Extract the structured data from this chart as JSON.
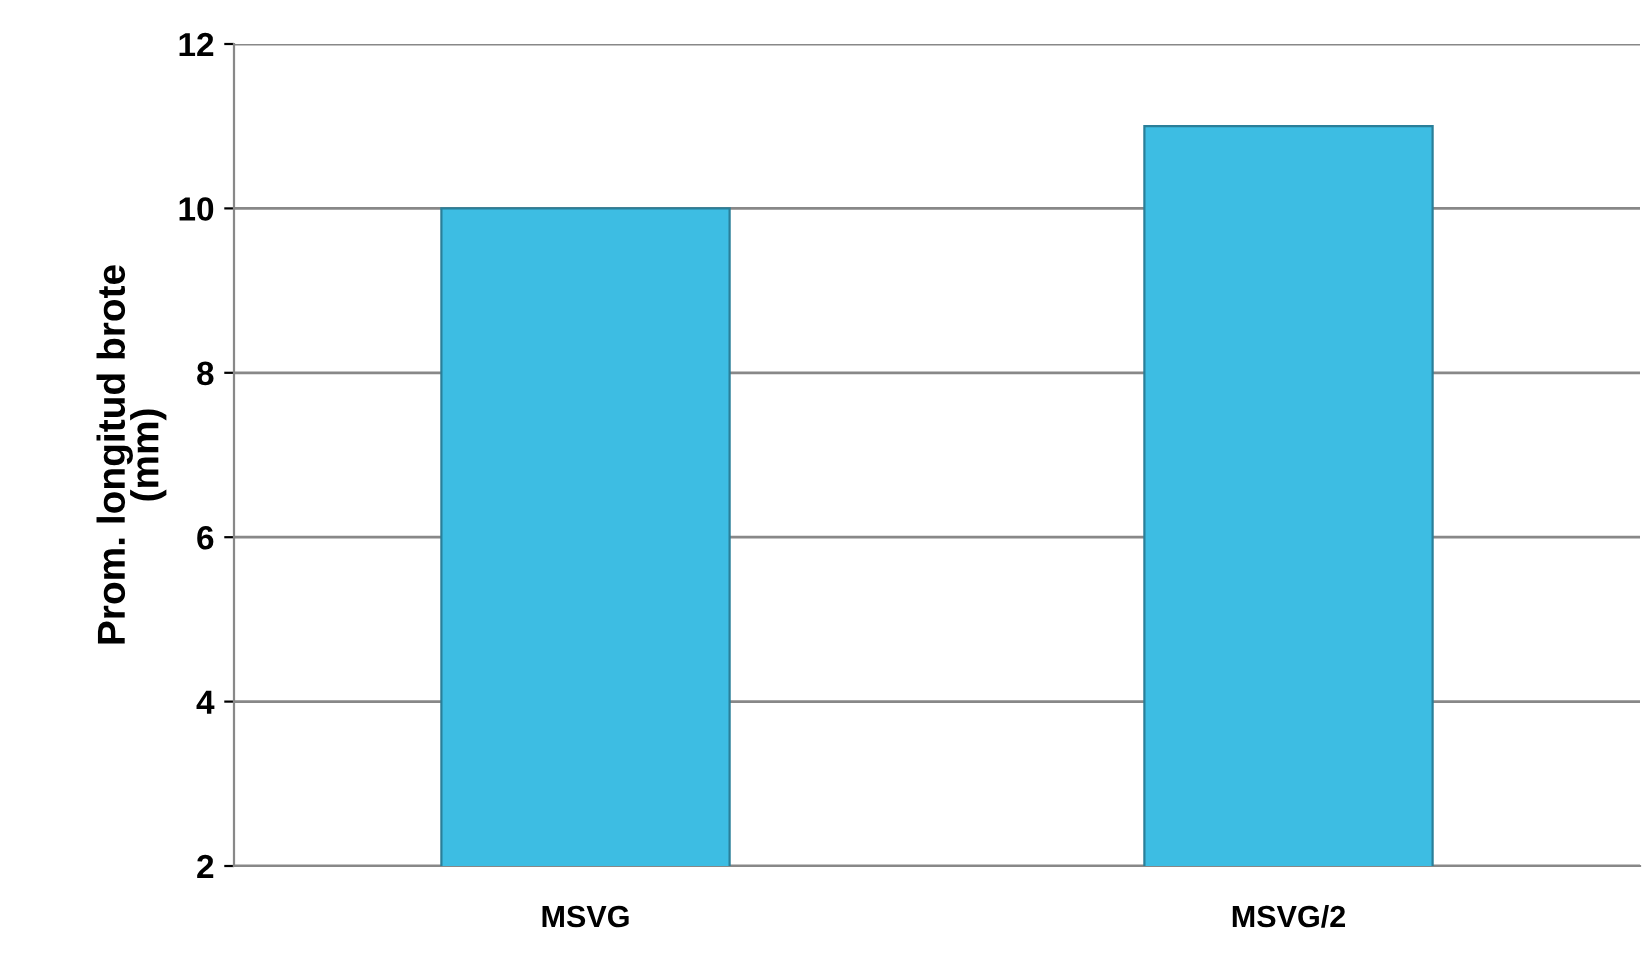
{
  "chart_data": {
    "type": "bar",
    "ylabel": "Prom. longitud brote\n(mm)",
    "categories": [
      "MSVG",
      "MSVG/2"
    ],
    "values": [
      10.0,
      11.0
    ],
    "color": "#3dbde3",
    "ylim": [
      2,
      12
    ],
    "yticks": [
      2,
      4,
      6,
      8,
      10,
      12
    ],
    "grid": "y"
  }
}
